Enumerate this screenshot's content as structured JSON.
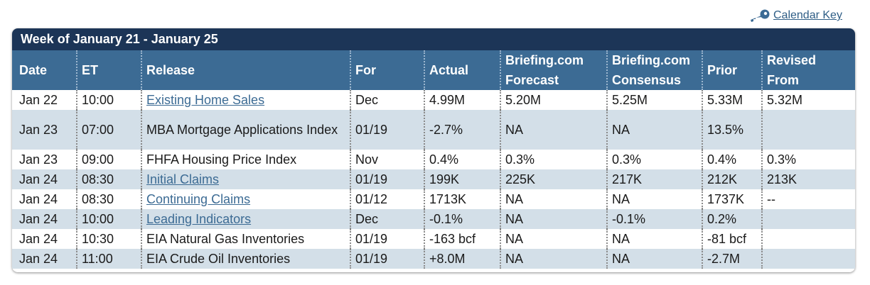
{
  "calendar_key": {
    "label": "Calendar Key",
    "icon": "key-icon"
  },
  "week_title": "Week of January 21 - January 25",
  "columns": [
    {
      "key": "date",
      "label": "Date"
    },
    {
      "key": "et",
      "label": "ET"
    },
    {
      "key": "release",
      "label": "Release"
    },
    {
      "key": "for",
      "label": "For"
    },
    {
      "key": "actual",
      "label": "Actual"
    },
    {
      "key": "forecast",
      "label": "Briefing.com Forecast"
    },
    {
      "key": "consensus",
      "label": "Briefing.com Consensus"
    },
    {
      "key": "prior",
      "label": "Prior"
    },
    {
      "key": "revised",
      "label": "Revised From"
    }
  ],
  "rows": [
    {
      "date": "Jan 22",
      "et": "10:00",
      "release": "Existing Home Sales",
      "release_link": true,
      "for": "Dec",
      "actual": "4.99M",
      "forecast": "5.20M",
      "consensus": "5.25M",
      "prior": "5.33M",
      "revised": "5.32M"
    },
    {
      "date": "Jan 23",
      "et": "07:00",
      "release": "MBA Mortgage Applications Index",
      "release_link": false,
      "for": "01/19",
      "actual": "-2.7%",
      "forecast": "NA",
      "consensus": "NA",
      "prior": "13.5%",
      "revised": ""
    },
    {
      "date": "Jan 23",
      "et": "09:00",
      "release": "FHFA Housing Price Index",
      "release_link": false,
      "for": "Nov",
      "actual": "0.4%",
      "forecast": "0.3%",
      "consensus": "0.3%",
      "prior": "0.4%",
      "revised": "0.3%"
    },
    {
      "date": "Jan 24",
      "et": "08:30",
      "release": "Initial Claims",
      "release_link": true,
      "for": "01/19",
      "actual": "199K",
      "forecast": "225K",
      "consensus": "217K",
      "prior": "212K",
      "revised": "213K"
    },
    {
      "date": "Jan 24",
      "et": "08:30",
      "release": "Continuing Claims",
      "release_link": true,
      "for": "01/12",
      "actual": "1713K",
      "forecast": "NA",
      "consensus": "NA",
      "prior": "1737K",
      "revised": "--"
    },
    {
      "date": "Jan 24",
      "et": "10:00",
      "release": "Leading Indicators",
      "release_link": true,
      "for": "Dec",
      "actual": "-0.1%",
      "forecast": "NA",
      "consensus": "-0.1%",
      "prior": "0.2%",
      "revised": ""
    },
    {
      "date": "Jan 24",
      "et": "10:30",
      "release": "EIA Natural Gas Inventories",
      "release_link": false,
      "for": "01/19",
      "actual": "-163 bcf",
      "forecast": "NA",
      "consensus": "NA",
      "prior": "-81 bcf",
      "revised": ""
    },
    {
      "date": "Jan 24",
      "et": "11:00",
      "release": "EIA Crude Oil Inventories",
      "release_link": false,
      "for": "01/19",
      "actual": "+8.0M",
      "forecast": "NA",
      "consensus": "NA",
      "prior": "-2.7M",
      "revised": ""
    }
  ],
  "colors": {
    "title_bar": "#1c3557",
    "header_bg": "#3c6b94",
    "row_alt": "#d3dfe8",
    "link": "#3c6b94"
  }
}
